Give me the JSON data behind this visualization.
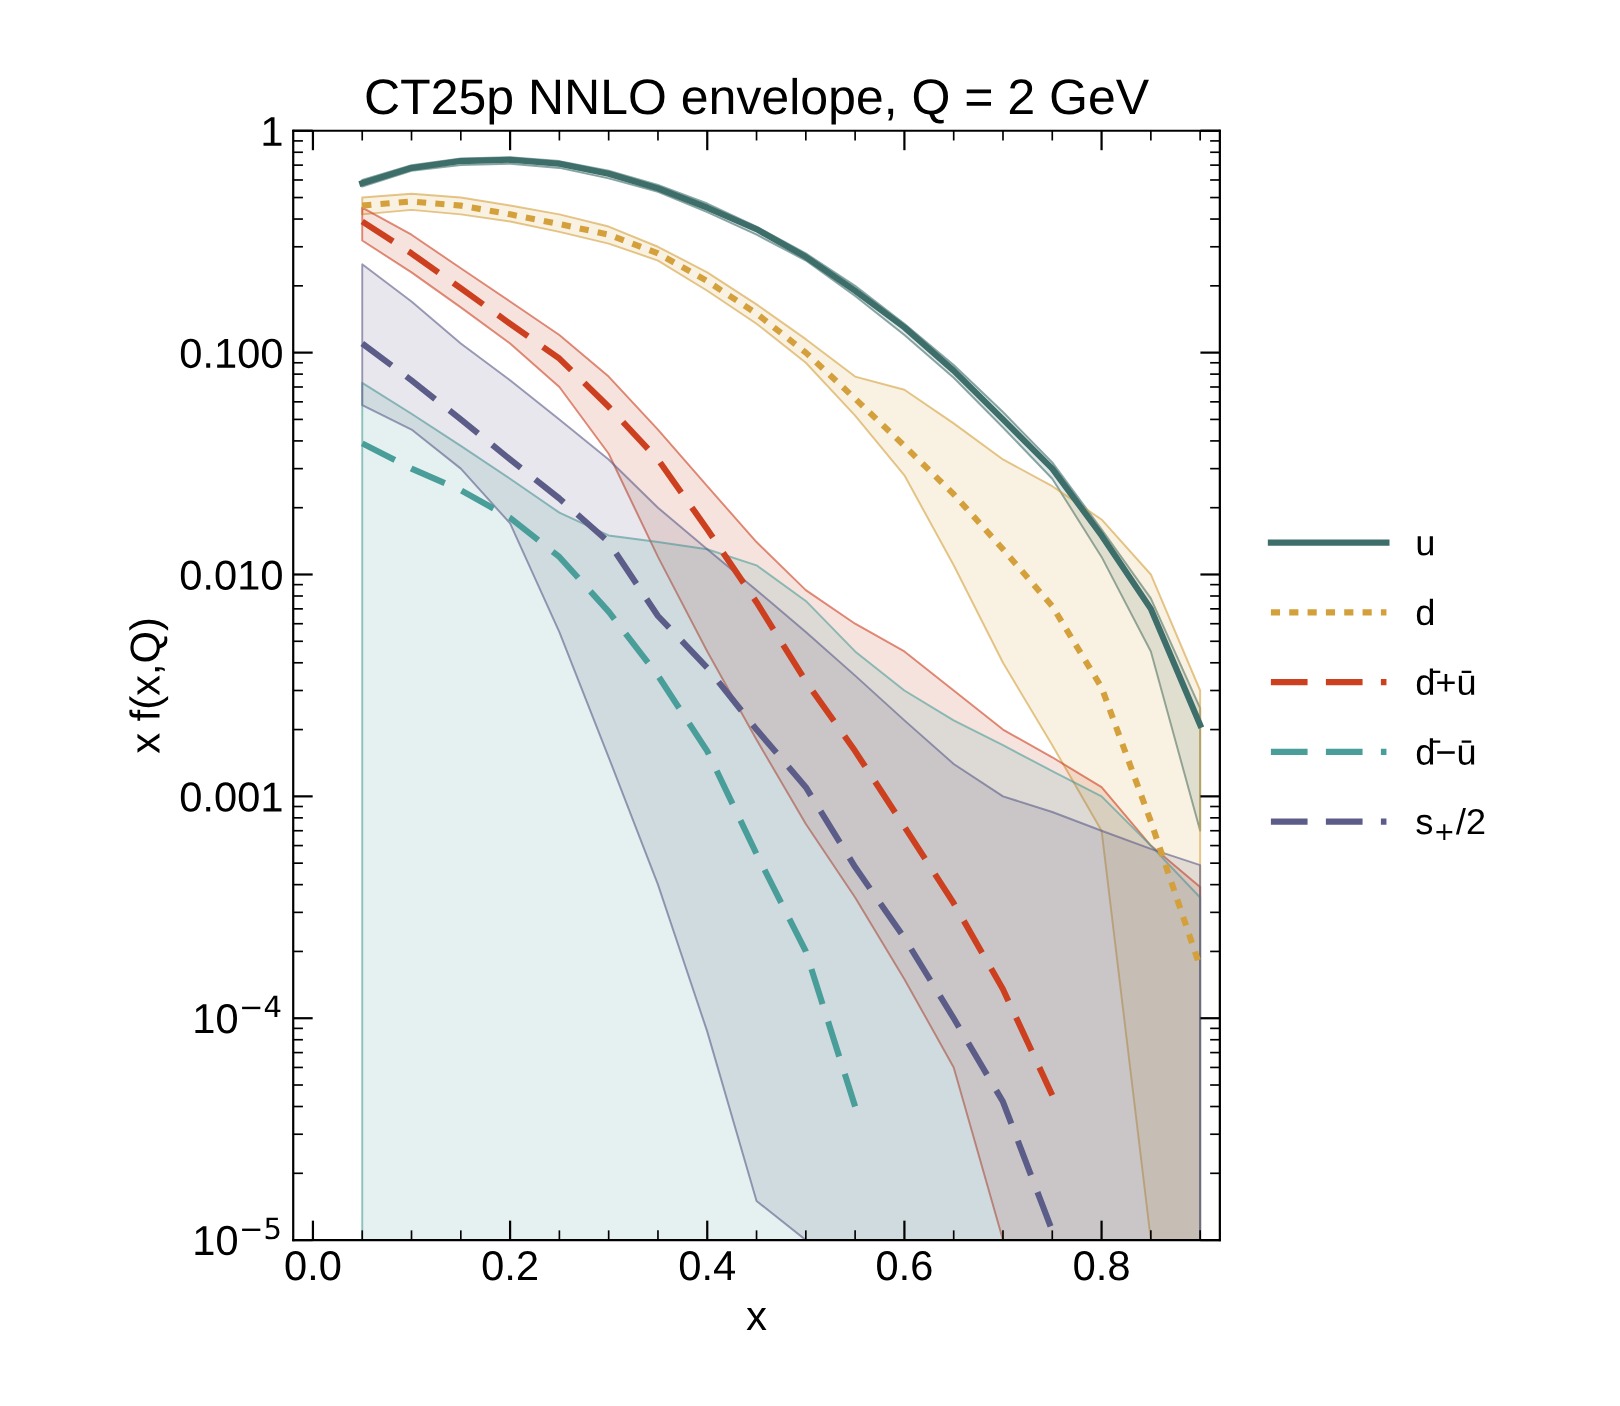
{
  "chart_data": {
    "type": "line",
    "title": "CT25p NNLO envelope, Q = 2 GeV",
    "xlabel": "x",
    "ylabel": "x f(x,Q)",
    "x": [
      0.05,
      0.1,
      0.15,
      0.2,
      0.25,
      0.3,
      0.35,
      0.4,
      0.45,
      0.5,
      0.55,
      0.6,
      0.65,
      0.7,
      0.75,
      0.8,
      0.85,
      0.9
    ],
    "series": [
      {
        "name": "u",
        "color": "#3d6e6a",
        "line_style": "solid",
        "values": [
          0.58,
          0.68,
          0.73,
          0.74,
          0.71,
          0.64,
          0.55,
          0.45,
          0.36,
          0.27,
          0.19,
          0.13,
          0.083,
          0.05,
          0.03,
          0.015,
          0.007,
          0.0021
        ],
        "lower": [
          0.56,
          0.66,
          0.7,
          0.71,
          0.68,
          0.61,
          0.53,
          0.43,
          0.34,
          0.26,
          0.18,
          0.12,
          0.077,
          0.046,
          0.027,
          0.012,
          0.0045,
          0.0007
        ],
        "upper": [
          0.6,
          0.7,
          0.75,
          0.76,
          0.73,
          0.66,
          0.57,
          0.47,
          0.37,
          0.28,
          0.2,
          0.135,
          0.088,
          0.054,
          0.032,
          0.016,
          0.0078,
          0.0025
        ]
      },
      {
        "name": "d",
        "color": "#d4a03c",
        "line_style": "dotted",
        "values": [
          0.46,
          0.48,
          0.46,
          0.42,
          0.38,
          0.34,
          0.28,
          0.21,
          0.15,
          0.1,
          0.062,
          0.038,
          0.023,
          0.013,
          0.0072,
          0.0031,
          0.00077,
          0.00017
        ],
        "lower": [
          0.42,
          0.44,
          0.42,
          0.39,
          0.35,
          0.31,
          0.26,
          0.19,
          0.135,
          0.09,
          0.052,
          0.028,
          0.011,
          0.004,
          0.0017,
          0.0007,
          1e-05,
          1e-05
        ],
        "upper": [
          0.5,
          0.52,
          0.5,
          0.46,
          0.42,
          0.37,
          0.3,
          0.23,
          0.165,
          0.115,
          0.078,
          0.068,
          0.048,
          0.033,
          0.025,
          0.0177,
          0.01,
          0.003
        ]
      },
      {
        "name": "d̄+ū",
        "color": "#cc4020",
        "line_style": "dashed",
        "values": [
          0.39,
          0.28,
          0.195,
          0.135,
          0.094,
          0.057,
          0.033,
          0.016,
          0.0075,
          0.0033,
          0.0016,
          0.00073,
          0.00033,
          0.000135,
          4.5e-05,
          null,
          null,
          null
        ],
        "lower": [
          0.32,
          0.23,
          0.16,
          0.11,
          0.07,
          0.035,
          0.012,
          0.0045,
          0.0018,
          0.00075,
          0.00035,
          0.00015,
          6e-05,
          1e-05,
          1e-05,
          1e-05,
          1e-05,
          1e-05
        ],
        "upper": [
          0.45,
          0.34,
          0.24,
          0.17,
          0.12,
          0.078,
          0.045,
          0.025,
          0.014,
          0.0085,
          0.006,
          0.0045,
          0.003,
          0.002,
          0.0015,
          0.0011,
          0.0006,
          0.00039
        ]
      },
      {
        "name": "d̄−ū",
        "color": "#4a9e9a",
        "line_style": "dashed",
        "values": [
          0.039,
          0.03,
          0.024,
          0.018,
          0.012,
          0.0068,
          0.0035,
          0.0016,
          0.00055,
          0.0002,
          4e-05,
          null,
          null,
          null,
          null,
          null,
          null,
          null
        ],
        "lower": [
          1e-05,
          1e-05,
          1e-05,
          1e-05,
          1e-05,
          1e-05,
          1e-05,
          1e-05,
          1e-05,
          1e-05,
          1e-05,
          1e-05,
          1e-05,
          1e-05,
          1e-05,
          1e-05,
          1e-05,
          1e-05
        ],
        "upper": [
          0.073,
          0.053,
          0.038,
          0.027,
          0.019,
          0.015,
          0.014,
          0.013,
          0.011,
          0.0076,
          0.0045,
          0.003,
          0.0022,
          0.0017,
          0.0013,
          0.001,
          0.0006,
          0.00035
        ]
      },
      {
        "name": "s$_{+}$/2",
        "color": "#5c5c88",
        "line_style": "dashed",
        "values": [
          0.11,
          0.075,
          0.05,
          0.033,
          0.022,
          0.014,
          0.0065,
          0.0038,
          0.002,
          0.0011,
          0.00048,
          0.00023,
          0.0001,
          4.2e-05,
          1.1e-05,
          null,
          null,
          null
        ],
        "lower": [
          0.058,
          0.045,
          0.03,
          0.017,
          0.0055,
          0.0015,
          0.0004,
          8.7e-05,
          1.5e-05,
          1e-05,
          1e-05,
          1e-05,
          1e-05,
          1e-05,
          1e-05,
          1e-05,
          1e-05,
          1e-05
        ],
        "upper": [
          0.25,
          0.17,
          0.11,
          0.075,
          0.05,
          0.033,
          0.02,
          0.013,
          0.0085,
          0.0055,
          0.0035,
          0.0022,
          0.0014,
          0.001,
          0.00085,
          0.0007,
          0.00058,
          0.00049
        ]
      }
    ],
    "log": "y",
    "xlim": [
      -0.02,
      0.92
    ],
    "ylim": [
      1e-05,
      1
    ],
    "xticks": [
      {
        "value": 0,
        "label": "0.0"
      },
      0.2,
      0.4,
      0.6,
      0.8
    ],
    "yticks": [
      {
        "value": 1,
        "label": "1"
      },
      {
        "value": 0.1,
        "label": "0.100"
      },
      {
        "value": 0.01,
        "label": "0.010"
      },
      {
        "value": 0.001,
        "label": "0.001"
      },
      {
        "value": 0.0001,
        "label": "10$^{−4}$"
      },
      {
        "value": 1e-05,
        "label": "10$^{−5}$"
      }
    ],
    "grid": false,
    "legend": "right",
    "marker": "none"
  }
}
